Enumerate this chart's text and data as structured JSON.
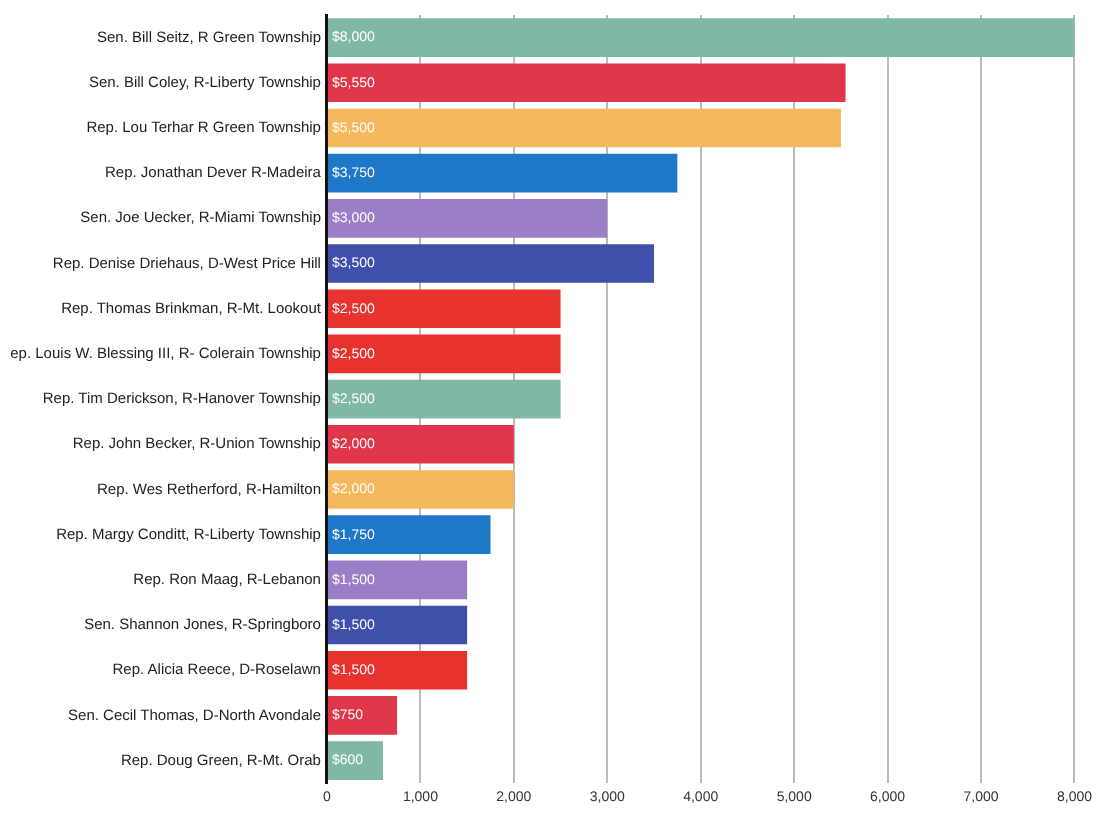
{
  "chart_data": {
    "type": "bar",
    "orientation": "horizontal",
    "categories": [
      "Sen. Bill Seitz, R Green Township",
      "Sen. Bill Coley, R-Liberty Township",
      "Rep. Lou Terhar R Green Township",
      "Rep. Jonathan Dever R-Madeira",
      "Sen. Joe Uecker, R-Miami Township",
      "Rep. Denise Driehaus, D-West Price Hill",
      "Rep. Thomas Brinkman, R-Mt. Lookout",
      "ep. Louis W. Blessing III, R- Colerain Township",
      "Rep. Tim Derickson, R-Hanover Township",
      "Rep. John Becker, R-Union Township",
      "Rep. Wes Retherford, R-Hamilton",
      "Rep. Margy Conditt, R-Liberty Township",
      "Rep. Ron Maag, R-Lebanon",
      "Sen. Shannon Jones, R-Springboro",
      "Rep. Alicia Reece, D-Roselawn",
      "Sen. Cecil Thomas, D-North Avondale",
      "Rep. Doug Green, R-Mt. Orab"
    ],
    "values": [
      8000,
      5550,
      5500,
      3750,
      3000,
      3500,
      2500,
      2500,
      2500,
      2000,
      2000,
      1750,
      1500,
      1500,
      1500,
      750,
      600
    ],
    "value_labels": [
      "$8,000",
      "$5,550",
      "$5,500",
      "$3,750",
      "$3,000",
      "$3,500",
      "$2,500",
      "$2,500",
      "$2,500",
      "$2,000",
      "$2,000",
      "$1,750",
      "$1,500",
      "$1,500",
      "$1,500",
      "$750",
      "$600"
    ],
    "colors": [
      "#7fb9a6",
      "#e0364a",
      "#f6b85c",
      "#1f77c9",
      "#9b7fc6",
      "#3f4faa",
      "#e8322e",
      "#e8322e",
      "#7fb9a6",
      "#e0364a",
      "#f6b85c",
      "#1f77c9",
      "#9b7fc6",
      "#3f4faa",
      "#e8322e",
      "#e0364a",
      "#7fb9a6"
    ],
    "xlim": [
      0,
      8000
    ],
    "xticks": [
      0,
      {
        "value": 1000,
        "label": "1,000"
      },
      {
        "value": 2000,
        "label": "2,000"
      },
      {
        "value": 3000,
        "label": "3,000"
      },
      {
        "value": 4000,
        "label": "4,000"
      },
      {
        "value": 5000,
        "label": "5,000"
      },
      {
        "value": 6000,
        "label": "6,000"
      },
      {
        "value": 7000,
        "label": "7,000"
      },
      {
        "value": 8000,
        "label": "8,000"
      }
    ],
    "grid": "x"
  }
}
